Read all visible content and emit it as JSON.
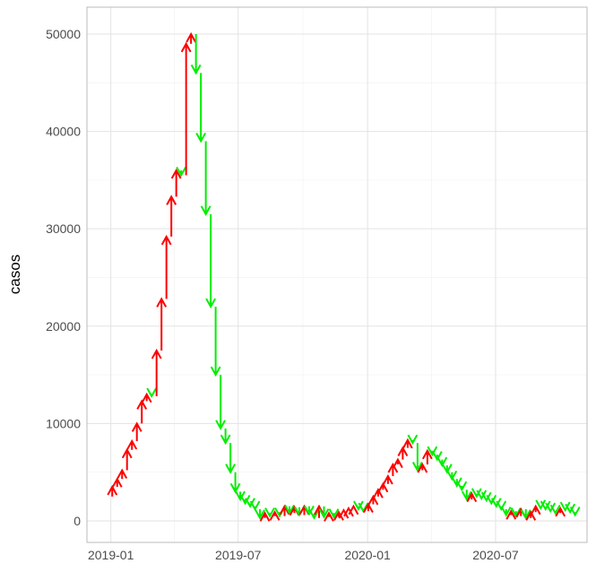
{
  "chart_data": {
    "type": "arrow-steps",
    "y_label": "casos",
    "x": [
      -5,
      2,
      9,
      16,
      23,
      30,
      37,
      44,
      51,
      58,
      65,
      72,
      79,
      86,
      93,
      100,
      107,
      114,
      121,
      128,
      135,
      142,
      149,
      156,
      163,
      170,
      177,
      184,
      191,
      198,
      205,
      212,
      219,
      226,
      233,
      240,
      247,
      254,
      261,
      268,
      275,
      282,
      289,
      296,
      303,
      310,
      317,
      324,
      331,
      338,
      345,
      352,
      359,
      366,
      373,
      380,
      387,
      394,
      401,
      408,
      415,
      422,
      429,
      436,
      443,
      450,
      457,
      464,
      471,
      478,
      485,
      492,
      499,
      506,
      513,
      520,
      527,
      534,
      541,
      548,
      555,
      562,
      569,
      576,
      583,
      590,
      597,
      604,
      611,
      618,
      625,
      632,
      639,
      646,
      653,
      660
    ],
    "values": [
      2500,
      3500,
      4300,
      5200,
      7300,
      8200,
      10000,
      12300,
      13000,
      12800,
      17500,
      22800,
      29200,
      33300,
      36000,
      35500,
      49000,
      50000,
      46000,
      39000,
      31500,
      22000,
      15000,
      9500,
      8000,
      5000,
      3000,
      2200,
      1800,
      1500,
      1200,
      300,
      800,
      500,
      900,
      500,
      1500,
      800,
      1400,
      600,
      1500,
      700,
      300,
      1500,
      400,
      800,
      400,
      900,
      1100,
      1300,
      1500,
      1200,
      1000,
      1700,
      2500,
      3200,
      3800,
      4600,
      5800,
      6300,
      7500,
      8300,
      8000,
      5200,
      5800,
      7200,
      6800,
      6300,
      5700,
      5000,
      4300,
      3600,
      3200,
      2200,
      2800,
      2500,
      2300,
      2100,
      1800,
      1500,
      1200,
      600,
      1000,
      500,
      1200,
      300,
      900,
      1500,
      1300,
      1200,
      1000,
      800,
      1300,
      1100,
      900,
      600
    ],
    "up_color": "#ff0000",
    "down_color": "#00ee00",
    "xlim": [
      -34,
      677
    ],
    "ylim": [
      -2210,
      52760
    ],
    "xticks": [
      {
        "value": 0,
        "label": "2019-01"
      },
      {
        "value": 181,
        "label": "2019-07"
      },
      {
        "value": 365,
        "label": "2020-01"
      },
      {
        "value": 547,
        "label": "2020-07"
      }
    ],
    "yticks": [
      0,
      10000,
      20000,
      30000,
      40000,
      50000
    ],
    "grid": true
  }
}
